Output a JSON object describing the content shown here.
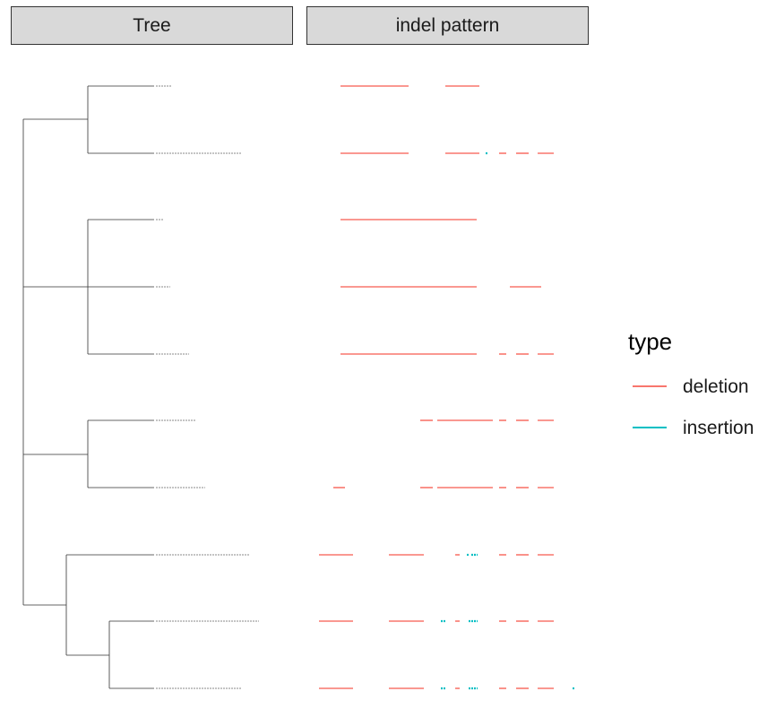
{
  "panels": {
    "tree_title": "Tree",
    "indel_title": "indel pattern"
  },
  "legend": {
    "title": "type",
    "items": [
      {
        "label": "deletion",
        "color": "#F8766D"
      },
      {
        "label": "insertion",
        "color": "#00BFC4"
      }
    ]
  },
  "chart_data": {
    "type": "line",
    "title": "",
    "xlabel": "",
    "ylabel": "",
    "grid": false,
    "legend_position": "right",
    "tree": {
      "tip_label_note": "tip labels rendered too small to read",
      "tip_count": 10
    },
    "indel_pattern": {
      "x_range": [
        0,
        300
      ],
      "rows": [
        {
          "row": 1,
          "deletion": [
            [
              24,
              100
            ],
            [
              141,
              179
            ]
          ],
          "insertion": []
        },
        {
          "row": 2,
          "deletion": [
            [
              24,
              100
            ],
            [
              141,
              179
            ],
            [
              201,
              209
            ],
            [
              220,
              234
            ],
            [
              244,
              262
            ]
          ],
          "insertion": [
            [
              186,
              189
            ]
          ]
        },
        {
          "row": 3,
          "deletion": [
            [
              24,
              176
            ]
          ],
          "insertion": []
        },
        {
          "row": 4,
          "deletion": [
            [
              24,
              176
            ],
            [
              213,
              248
            ]
          ],
          "insertion": []
        },
        {
          "row": 5,
          "deletion": [
            [
              24,
              176
            ],
            [
              201,
              209
            ],
            [
              220,
              234
            ],
            [
              244,
              262
            ]
          ],
          "insertion": []
        },
        {
          "row": 6,
          "deletion": [
            [
              113,
              127
            ],
            [
              132,
              194
            ],
            [
              201,
              209
            ],
            [
              220,
              234
            ],
            [
              244,
              262
            ]
          ],
          "insertion": []
        },
        {
          "row": 7,
          "deletion": [
            [
              16,
              29
            ],
            [
              113,
              127
            ],
            [
              132,
              194
            ],
            [
              201,
              209
            ],
            [
              220,
              234
            ],
            [
              244,
              262
            ]
          ],
          "insertion": []
        },
        {
          "row": 8,
          "deletion": [
            [
              0,
              38
            ],
            [
              78,
              117
            ],
            [
              152,
              157
            ],
            [
              201,
              209
            ],
            [
              220,
              234
            ],
            [
              244,
              262
            ]
          ],
          "insertion": [
            [
              165,
              168
            ],
            [
              170,
              177
            ]
          ]
        },
        {
          "row": 9,
          "deletion": [
            [
              0,
              38
            ],
            [
              78,
              117
            ],
            [
              152,
              157
            ],
            [
              201,
              209
            ],
            [
              220,
              234
            ],
            [
              244,
              262
            ]
          ],
          "insertion": [
            [
              136,
              141
            ],
            [
              167,
              177
            ]
          ]
        },
        {
          "row": 10,
          "deletion": [
            [
              0,
              38
            ],
            [
              78,
              117
            ],
            [
              152,
              157
            ],
            [
              201,
              209
            ],
            [
              220,
              234
            ],
            [
              244,
              262
            ]
          ],
          "insertion": [
            [
              136,
              141
            ],
            [
              167,
              177
            ],
            [
              283,
              286
            ]
          ]
        }
      ]
    }
  }
}
